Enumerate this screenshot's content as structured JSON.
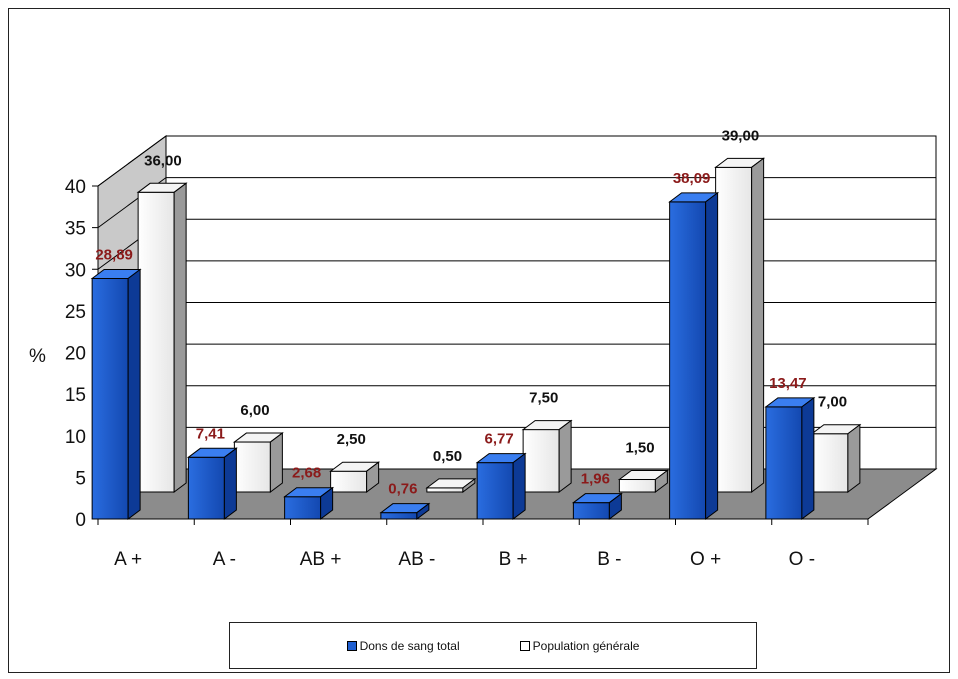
{
  "chart_data": {
    "type": "bar",
    "variant": "3d-clustered",
    "ylabel": "%",
    "ylim": [
      0,
      40
    ],
    "yticks": [
      0,
      5,
      10,
      15,
      20,
      25,
      30,
      35,
      40
    ],
    "grid": true,
    "legend_position": "bottom",
    "categories": [
      "A +",
      "A -",
      "AB +",
      "AB -",
      "B +",
      "B -",
      "O +",
      "O -"
    ],
    "series": [
      {
        "name": "Dons de sang total",
        "color": "#1f5fd1",
        "values": [
          28.89,
          7.41,
          2.68,
          0.76,
          6.77,
          1.96,
          38.09,
          13.47
        ],
        "labels": [
          "28,89",
          "7,41",
          "2,68",
          "0,76",
          "6,77",
          "1,96",
          "38,09",
          "13,47"
        ]
      },
      {
        "name": "Population générale",
        "color": "#ffffff",
        "values": [
          36.0,
          6.0,
          2.5,
          0.5,
          7.5,
          1.5,
          39.0,
          7.0
        ],
        "labels": [
          "36,00",
          "6,00",
          "2,50",
          "0,50",
          "7,50",
          "1,50",
          "39,00",
          "7,00"
        ]
      }
    ]
  }
}
